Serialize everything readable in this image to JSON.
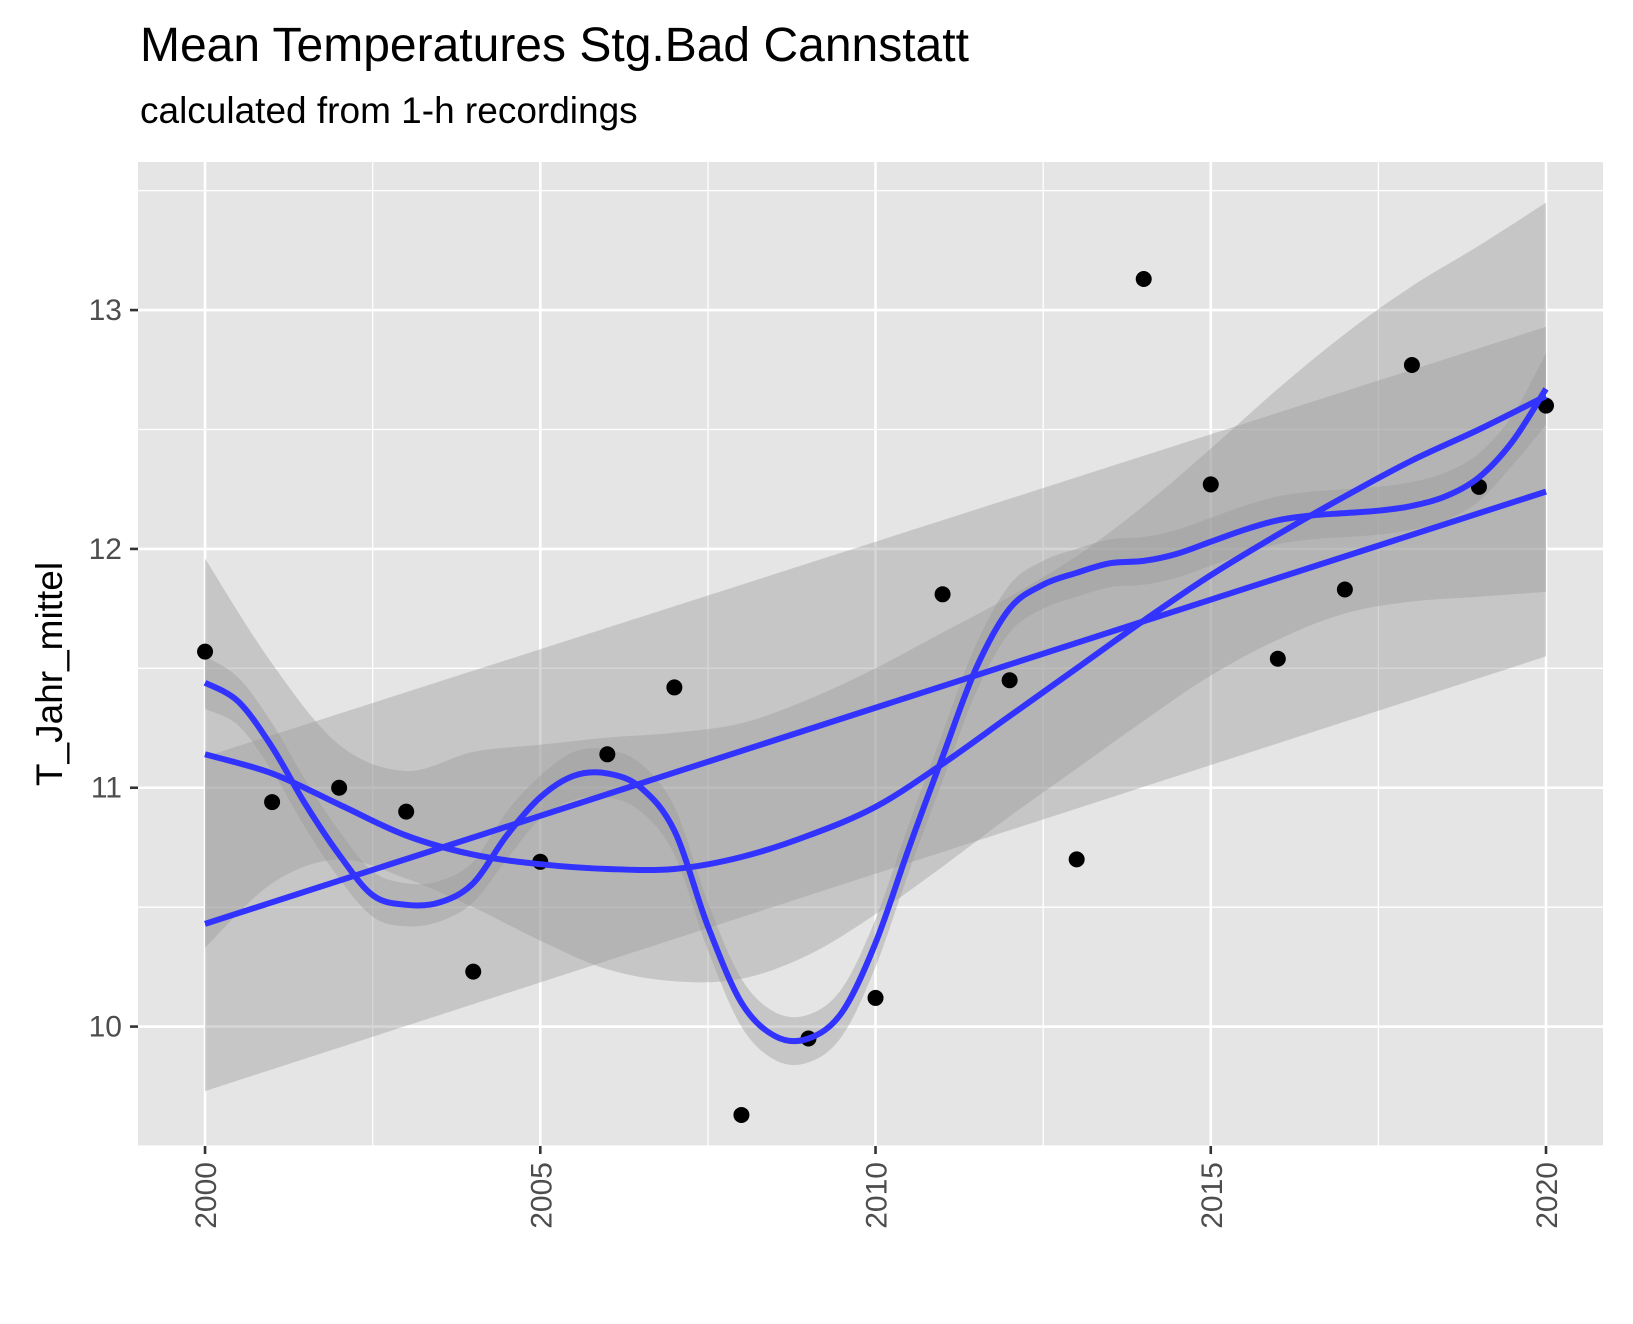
{
  "chart_data": {
    "type": "scatter",
    "title": "Mean Temperatures Stg.Bad Cannstatt",
    "subtitle": "calculated from 1-h recordings",
    "xlabel": "",
    "ylabel": "T_Jahr_mittel",
    "xlim": [
      1999,
      2020.85
    ],
    "ylim": [
      9.5,
      13.62
    ],
    "x_ticks": [
      2000,
      2005,
      2010,
      2015,
      2020
    ],
    "y_ticks": [
      10,
      11,
      12,
      13
    ],
    "grid": true,
    "legend": "none",
    "points": {
      "x": [
        2000,
        2001,
        2002,
        2003,
        2004,
        2005,
        2006,
        2007,
        2008,
        2009,
        2010,
        2011,
        2012,
        2013,
        2014,
        2015,
        2016,
        2017,
        2018,
        2019,
        2020
      ],
      "y": [
        11.57,
        10.94,
        11.0,
        10.9,
        10.23,
        10.69,
        11.14,
        11.42,
        9.63,
        9.95,
        10.12,
        11.81,
        11.45,
        10.7,
        13.13,
        12.27,
        11.54,
        11.83,
        12.77,
        12.26,
        12.6
      ]
    },
    "series": [
      {
        "fit": "linear",
        "x": [
          2000,
          2020
        ],
        "y": [
          10.43,
          12.24
        ],
        "lower": [
          9.73,
          11.55
        ],
        "upper": [
          11.13,
          12.93
        ]
      },
      {
        "fit": "smooth",
        "x": [
          2000,
          2001,
          2002,
          2003,
          2004,
          2005,
          2006,
          2007,
          2008,
          2009,
          2010,
          2011,
          2012,
          2013,
          2014,
          2015,
          2016,
          2017,
          2018,
          2019,
          2020
        ],
        "y": [
          11.14,
          11.06,
          10.93,
          10.8,
          10.72,
          10.68,
          10.66,
          10.66,
          10.71,
          10.8,
          10.92,
          11.1,
          11.3,
          11.5,
          11.7,
          11.89,
          12.06,
          12.22,
          12.37,
          12.5,
          12.64
        ],
        "lower": [
          10.33,
          10.6,
          10.7,
          10.62,
          10.5,
          10.36,
          10.24,
          10.19,
          10.2,
          10.3,
          10.47,
          10.67,
          10.88,
          11.08,
          11.28,
          11.47,
          11.62,
          11.73,
          11.78,
          11.8,
          11.82
        ],
        "upper": [
          11.96,
          11.52,
          11.18,
          11.07,
          11.15,
          11.18,
          11.21,
          11.23,
          11.27,
          11.37,
          11.5,
          11.65,
          11.8,
          11.97,
          12.18,
          12.42,
          12.67,
          12.9,
          13.1,
          13.27,
          13.45
        ]
      },
      {
        "fit": "loess",
        "x": [
          2000,
          2000.5,
          2001,
          2001.5,
          2002,
          2002.5,
          2003,
          2003.5,
          2004,
          2004.5,
          2005,
          2005.5,
          2006,
          2006.5,
          2007,
          2007.5,
          2008,
          2008.5,
          2009,
          2009.5,
          2010,
          2010.5,
          2011,
          2011.5,
          2012,
          2012.5,
          2013,
          2013.5,
          2014,
          2014.5,
          2015,
          2015.5,
          2016,
          2016.5,
          2017,
          2017.5,
          2018,
          2018.5,
          2019,
          2019.5,
          2020
        ],
        "y": [
          11.44,
          11.36,
          11.17,
          10.93,
          10.72,
          10.55,
          10.51,
          10.52,
          10.6,
          10.8,
          10.96,
          11.05,
          11.06,
          11.0,
          10.82,
          10.42,
          10.1,
          9.96,
          9.95,
          10.06,
          10.35,
          10.75,
          11.13,
          11.5,
          11.75,
          11.85,
          11.9,
          11.94,
          11.95,
          11.98,
          12.03,
          12.08,
          12.12,
          12.14,
          12.15,
          12.16,
          12.18,
          12.22,
          12.3,
          12.45,
          12.67
        ],
        "lower": [
          11.33,
          11.26,
          11.07,
          10.83,
          10.62,
          10.46,
          10.42,
          10.44,
          10.52,
          10.7,
          10.87,
          10.95,
          10.96,
          10.9,
          10.72,
          10.32,
          10.0,
          9.86,
          9.85,
          9.96,
          10.25,
          10.65,
          11.03,
          11.4,
          11.65,
          11.75,
          11.8,
          11.84,
          11.85,
          11.88,
          11.93,
          11.98,
          12.02,
          12.04,
          12.05,
          12.06,
          12.08,
          12.12,
          12.2,
          12.35,
          12.52
        ],
        "upper": [
          11.55,
          11.46,
          11.27,
          11.03,
          10.82,
          10.65,
          10.6,
          10.61,
          10.69,
          10.9,
          11.05,
          11.15,
          11.16,
          11.1,
          10.92,
          10.52,
          10.2,
          10.06,
          10.05,
          10.16,
          10.45,
          10.85,
          11.23,
          11.6,
          11.85,
          11.95,
          12.0,
          12.04,
          12.05,
          12.08,
          12.13,
          12.18,
          12.22,
          12.24,
          12.25,
          12.26,
          12.28,
          12.32,
          12.4,
          12.56,
          12.82
        ]
      }
    ],
    "colors": {
      "panel": "#e5e5e5",
      "gridline": "#ffffff",
      "line": "#3333ff",
      "band": "#999999",
      "point": "#000000",
      "tick_label": "#4d4d4d"
    }
  }
}
